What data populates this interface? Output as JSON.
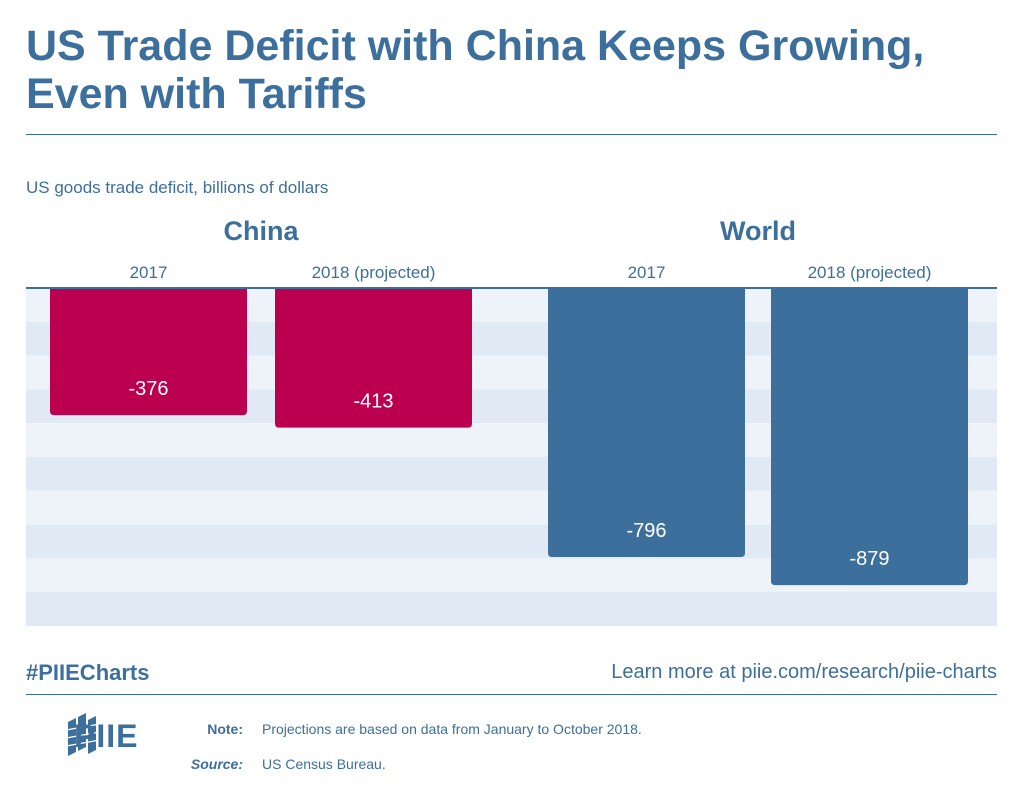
{
  "header": {
    "title": "US Trade Deficit with China Keeps Growing, Even with Tariffs",
    "subtitle": "US goods trade deficit, billions of dollars"
  },
  "chart_data": {
    "type": "bar",
    "ylabel": "US goods trade deficit, billions of dollars",
    "ylim": [
      -1000,
      0
    ],
    "grid": true,
    "groups": [
      {
        "name": "China",
        "color": "#bb0050",
        "categories": [
          "2017",
          "2018 (projected)"
        ],
        "values": [
          -376,
          -413
        ],
        "labels": [
          "-376",
          "-413"
        ]
      },
      {
        "name": "World",
        "color": "#3d6f9c",
        "categories": [
          "2017",
          "2018 (projected)"
        ],
        "values": [
          -796,
          -879
        ],
        "labels": [
          "-796",
          "-879"
        ]
      }
    ]
  },
  "footer": {
    "hashtag": "#PIIECharts",
    "learn_more": "Learn more at piie.com/research/piie-charts",
    "logo": "PIIE",
    "note_label": "Note:",
    "note_text": "Projections are based on data from January to October 2018.",
    "source_label": "Source:",
    "source_text": "US Census Bureau."
  },
  "colors": {
    "brand_blue": "#3d6f9c",
    "china_red": "#bb0050",
    "band_light": "#eef3fa",
    "band_dark": "#e1e9f4"
  }
}
